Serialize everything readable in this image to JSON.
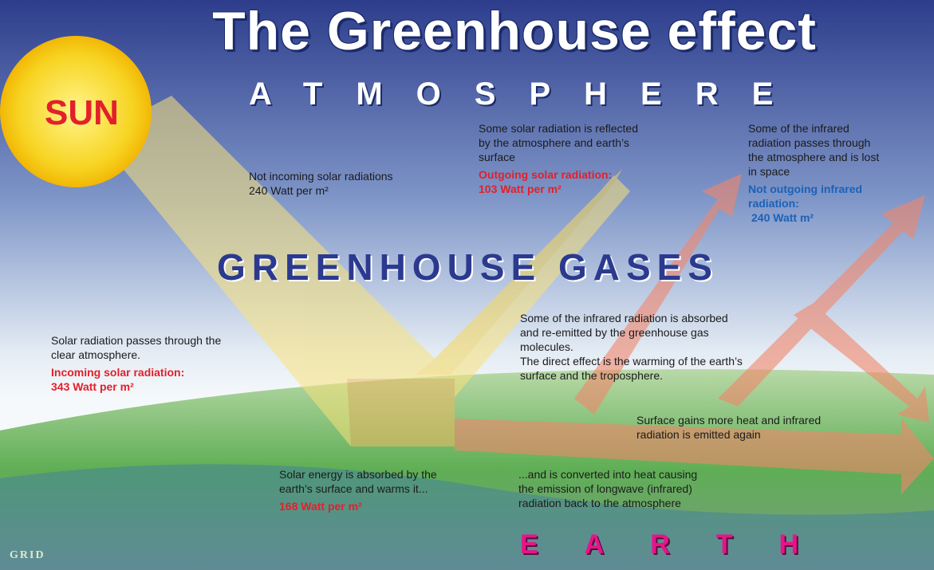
{
  "title": "The Greenhouse effect",
  "atmosphere": "ATMOSPHERE",
  "sun": "SUN",
  "greenhouse_gases": "GREENHOUSE GASES",
  "earth": "EARTH",
  "logo": "GRID",
  "notes": [
    {
      "text": "Some solar radiation is reflected by the atmosphere and earth’s surface",
      "label": "Outgoing solar radiation:",
      "value": "103 Watt per m²"
    },
    {
      "text": "Some of the infrared radiation passes through the atmosphere and is lost in space",
      "label": "Not outgoing infrared radiation:",
      "value": "240 Watt m²"
    },
    {
      "text": "Not incoming solar radiations",
      "value": "240 Watt per m²"
    },
    {
      "text": "Solar radiation passes through the clear atmosphere.",
      "label": "Incoming solar radiation:",
      "value": "343 Watt per m²"
    },
    {
      "text": "Some of the infrared radiation is absorbed and re-emitted by the greenhouse gas molecules.",
      "value": "The direct effect is the warming of the earth’s surface and the troposphere."
    },
    {
      "text": "Surface gains more heat and infrared radiation is emitted again"
    },
    {
      "text": "Solar energy is absorbed by the earth’s surface and warms it...",
      "value": "168 Watt per m²"
    },
    {
      "text": "...and is converted into heat causing the emission of longwave (infrared) radiation back to the atmosphere"
    }
  ]
}
